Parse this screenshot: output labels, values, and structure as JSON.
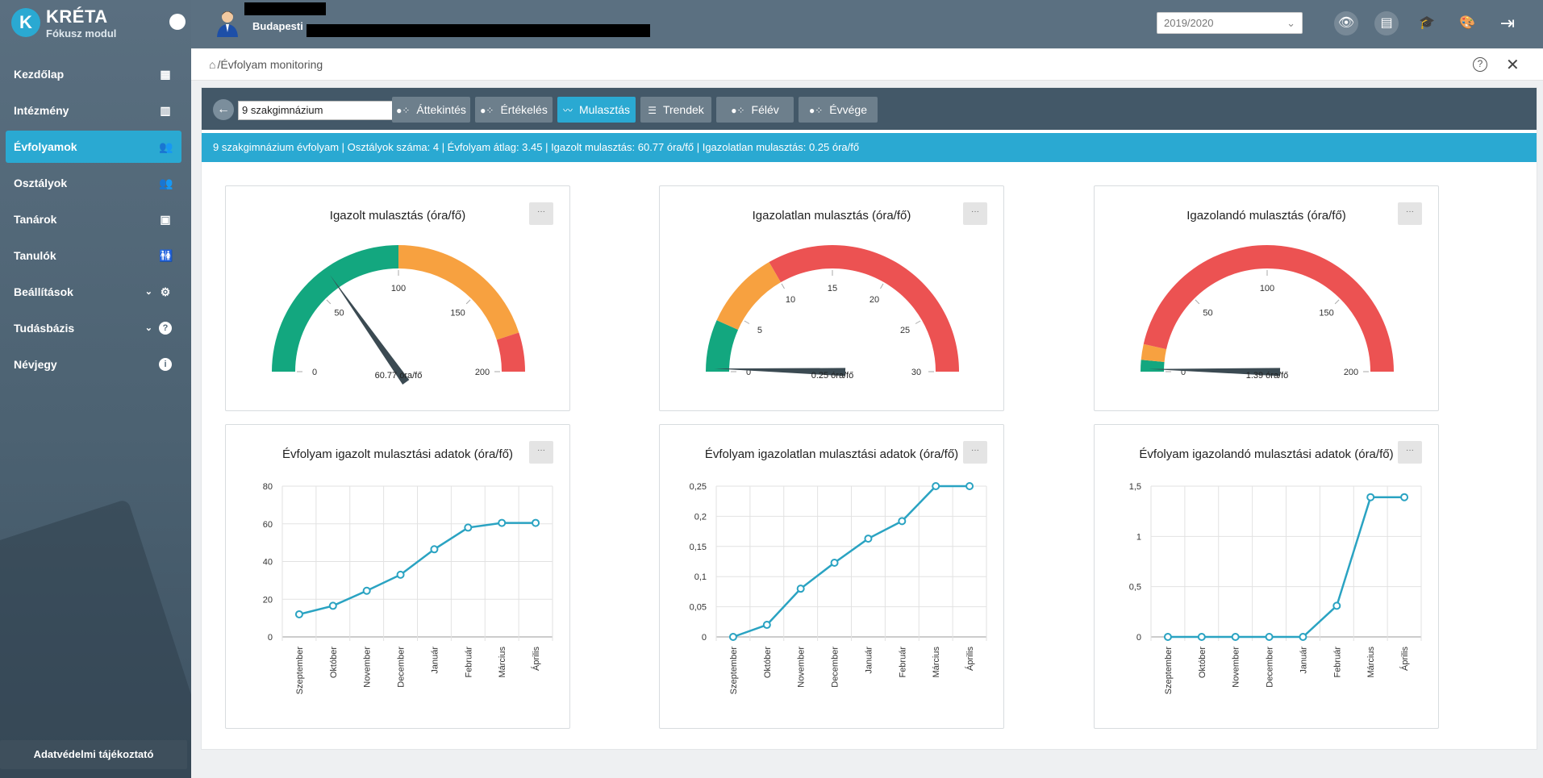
{
  "brand": {
    "name": "KRÉTA",
    "subtitle": "Fókusz modul",
    "logo_letter": "K"
  },
  "sidebar": {
    "items": [
      {
        "label": "Kezdőlap",
        "icon": "dashboard-icon",
        "active": false
      },
      {
        "label": "Intézmény",
        "icon": "building-icon",
        "active": false
      },
      {
        "label": "Évfolyamok",
        "icon": "users-icon",
        "active": true
      },
      {
        "label": "Osztályok",
        "icon": "users-icon",
        "active": false
      },
      {
        "label": "Tanárok",
        "icon": "id-card-icon",
        "active": false
      },
      {
        "label": "Tanulók",
        "icon": "students-icon",
        "active": false
      },
      {
        "label": "Beállítások",
        "icon": "gear-icon",
        "active": false,
        "expandable": true
      },
      {
        "label": "Tudásbázis",
        "icon": "question-icon",
        "active": false,
        "expandable": true
      },
      {
        "label": "Névjegy",
        "icon": "info-icon",
        "active": false
      }
    ],
    "privacy_label": "Adatvédelmi tájékoztató"
  },
  "header": {
    "school_prefix": "Budapesti",
    "year": "2019/2020",
    "icons": [
      "eye-icon",
      "id-card-icon",
      "graduation-cap-icon",
      "palette-icon",
      "logout-icon"
    ]
  },
  "breadcrumb": {
    "path": "/Évfolyam monitoring"
  },
  "toolbar": {
    "grade": "9 szakgimnázium",
    "tabs": [
      {
        "label": "Áttekintés",
        "active": false
      },
      {
        "label": "Értékelés",
        "active": false
      },
      {
        "label": "Mulasztás",
        "active": true
      },
      {
        "label": "Trendek",
        "active": false
      },
      {
        "label": "Félév",
        "active": false
      },
      {
        "label": "Évvége",
        "active": false
      }
    ]
  },
  "info": "9 szakgimnázium évfolyam | Osztályok száma: 4 | Évfolyam átlag: 3.45 | Igazolt mulasztás: 60.77 óra/fő | Igazolatlan mulasztás: 0.25 óra/fő",
  "card_menu_label": "···",
  "gauges": [
    {
      "title": "Igazolt mulasztás (óra/fő)",
      "min": 0,
      "max": 200,
      "value": 60.77,
      "value_label": "60.77 óra/fő",
      "ticks": [
        0,
        50,
        100,
        150,
        200
      ],
      "bands": [
        {
          "from": 0,
          "to": 100,
          "color": "#13a77f"
        },
        {
          "from": 100,
          "to": 180,
          "color": "#f7a140"
        },
        {
          "from": 180,
          "to": 200,
          "color": "#ec5252"
        }
      ]
    },
    {
      "title": "Igazolatlan mulasztás (óra/fő)",
      "min": 0,
      "max": 30,
      "value": 0.25,
      "value_label": "0.25 óra/fő",
      "ticks": [
        0,
        5,
        10,
        15,
        20,
        25,
        30
      ],
      "bands": [
        {
          "from": 0,
          "to": 4,
          "color": "#13a77f"
        },
        {
          "from": 4,
          "to": 10,
          "color": "#f7a140"
        },
        {
          "from": 10,
          "to": 30,
          "color": "#ec5252"
        }
      ]
    },
    {
      "title": "Igazolandó mulasztás (óra/fő)",
      "min": 0,
      "max": 200,
      "value": 1.39,
      "value_label": "1.39 óra/fő",
      "ticks": [
        0,
        50,
        100,
        150,
        200
      ],
      "bands": [
        {
          "from": 0,
          "to": 6,
          "color": "#13a77f"
        },
        {
          "from": 6,
          "to": 14,
          "color": "#f7a140"
        },
        {
          "from": 14,
          "to": 200,
          "color": "#ec5252"
        }
      ]
    }
  ],
  "chart_data": [
    {
      "type": "line",
      "title": "Évfolyam igazolt mulasztási adatok (óra/fő)",
      "categories": [
        "Szeptember",
        "Október",
        "November",
        "December",
        "Január",
        "Február",
        "Március",
        "Április"
      ],
      "values": [
        12,
        16.5,
        24.5,
        33,
        46.5,
        58,
        60.5,
        60.5
      ],
      "yticks": [
        "0",
        "20",
        "40",
        "60",
        "80"
      ],
      "ylim": [
        0,
        80
      ],
      "color": "#2aa3c2"
    },
    {
      "type": "line",
      "title": "Évfolyam igazolatlan mulasztási adatok (óra/fő)",
      "categories": [
        "Szeptember",
        "Október",
        "November",
        "December",
        "Január",
        "Február",
        "Március",
        "Április"
      ],
      "values": [
        0,
        0.02,
        0.08,
        0.123,
        0.163,
        0.192,
        0.25,
        0.25
      ],
      "yticks": [
        "0",
        "0,05",
        "0,1",
        "0,15",
        "0,2",
        "0,25"
      ],
      "ylim": [
        0,
        0.25
      ],
      "color": "#2aa3c2"
    },
    {
      "type": "line",
      "title": "Évfolyam igazolandó mulasztási adatok (óra/fő)",
      "categories": [
        "Szeptember",
        "Október",
        "November",
        "December",
        "Január",
        "Február",
        "Március",
        "Április"
      ],
      "values": [
        0,
        0,
        0,
        0,
        0,
        0.31,
        1.39,
        1.39
      ],
      "yticks": [
        "0",
        "0,5",
        "1",
        "1,5"
      ],
      "ylim": [
        0,
        1.5
      ],
      "color": "#2aa3c2"
    }
  ]
}
